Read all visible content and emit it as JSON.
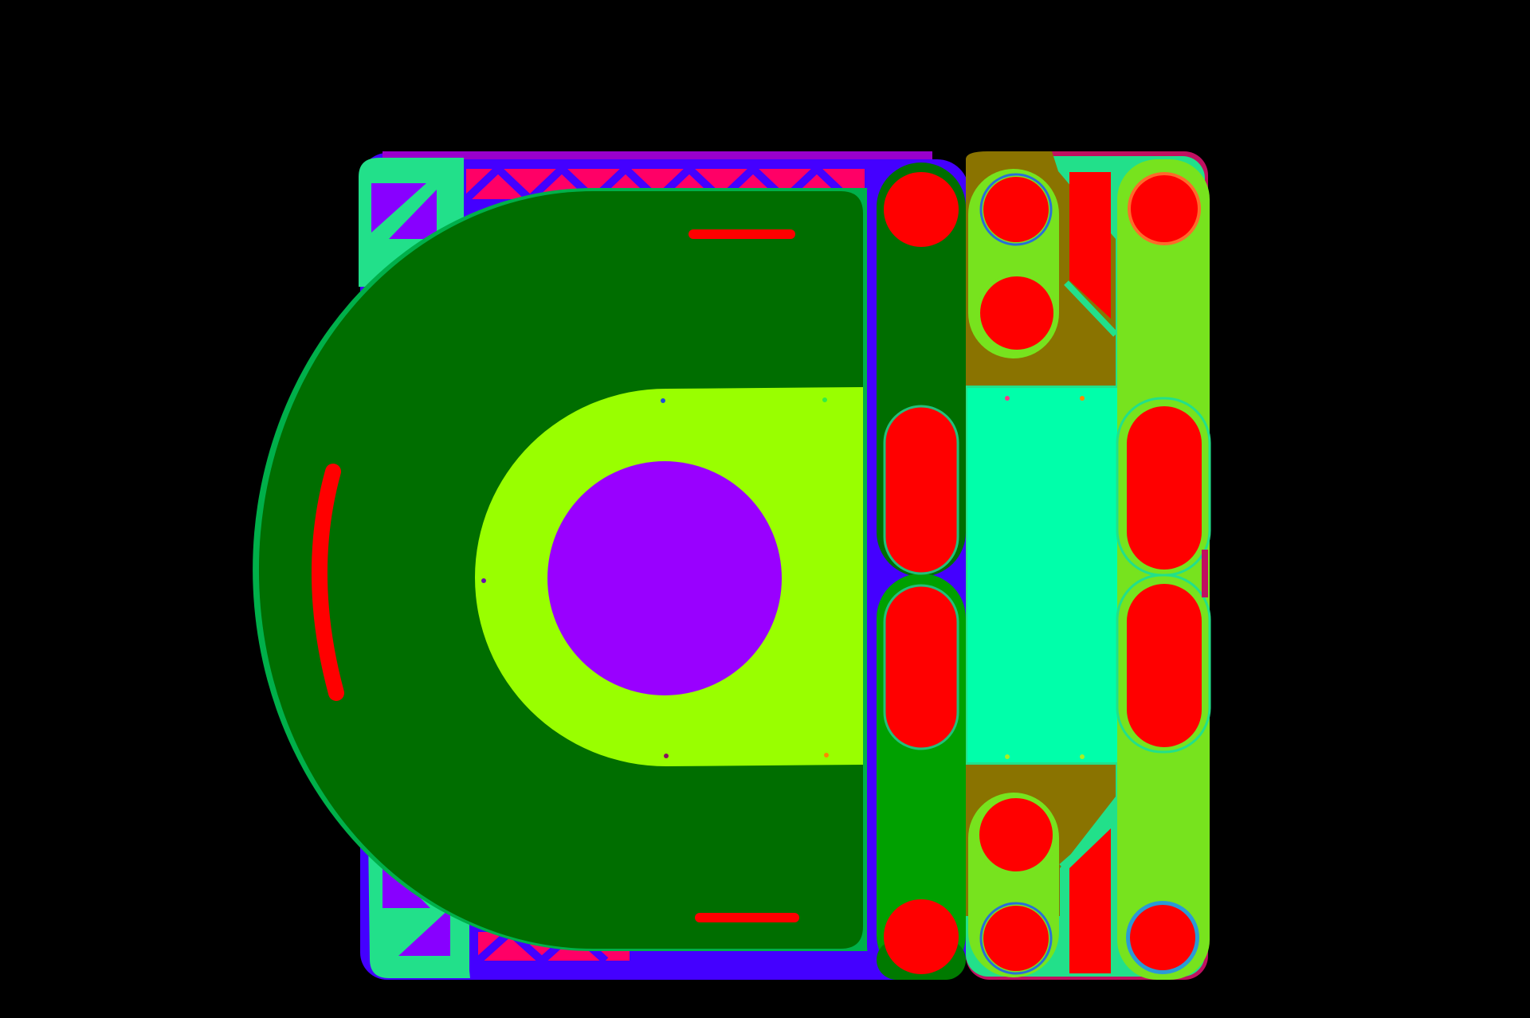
{
  "scene": {
    "description_visible_text": "",
    "palette": {
      "background": "#000000",
      "frame_blue": "#4400ff",
      "frame_purple": "#8800ff",
      "rail_mint": "#22e08a",
      "truss_magenta": "#ff0066",
      "housing_green": "#006e00",
      "housing_rim": "#00b04a",
      "cradle_lime": "#99ff00",
      "bore_violet": "#9900ff",
      "slot_red": "#ff0000",
      "column_green": "#00a000",
      "link_chartreuse": "#77e31e",
      "spacer_aqua": "#00ffaa",
      "bracket_olive": "#8a7300",
      "ring_blue": "#2a6fd6",
      "ring_orange": "#ff6a2a",
      "dot_magenta": "#ff3388",
      "dot_orange": "#ff8800"
    },
    "icons": {
      "left_assembly": "cradle-housing-icon",
      "bore": "bore-circle-icon",
      "column": "pin-column-icon",
      "right_assembly": "linkage-block-icon"
    }
  }
}
